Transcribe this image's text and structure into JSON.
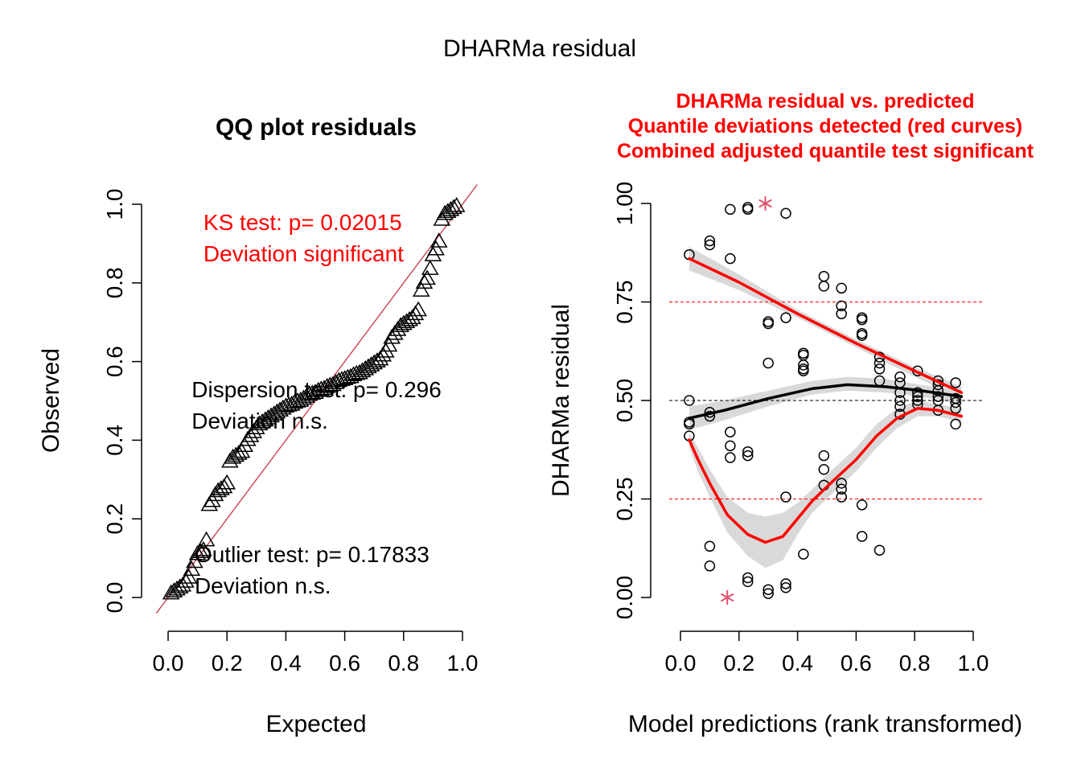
{
  "figure": {
    "title": "DHARMa residual"
  },
  "colors": {
    "black": "#000000",
    "red": "#ff0000",
    "qqline": "#c8505a",
    "band": "#d9d9d9",
    "outlier": "#df536b",
    "refline": "#ff0000"
  },
  "chart_data": [
    {
      "type": "scatter",
      "title": "QQ plot residuals",
      "xlabel": "Expected",
      "ylabel": "Observed",
      "xlim": [
        0,
        1
      ],
      "ylim": [
        0,
        1
      ],
      "x_ticks": [
        "0.0",
        "0.2",
        "0.4",
        "0.6",
        "0.8",
        "1.0"
      ],
      "y_ticks": [
        "0.0",
        "0.2",
        "0.4",
        "0.6",
        "0.8",
        "1.0"
      ],
      "marker": "triangle",
      "identity_line": true,
      "annotations": [
        {
          "key": "ks",
          "lines": [
            "KS test: p= 0.02015",
            "Deviation  significant"
          ],
          "color": "red",
          "at": [
            0.12,
            0.955
          ]
        },
        {
          "key": "dispersion",
          "lines": [
            "Dispersion test: p= 0.296",
            "Deviation  n.s."
          ],
          "color": "black",
          "at": [
            0.08,
            0.53
          ]
        },
        {
          "key": "outlier",
          "lines": [
            "Outlier test: p= 0.17833",
            "Deviation  n.s."
          ],
          "color": "black",
          "at": [
            0.09,
            0.11
          ]
        }
      ],
      "points": [
        [
          0.01,
          0.01
        ],
        [
          0.02,
          0.015
        ],
        [
          0.03,
          0.02
        ],
        [
          0.04,
          0.025
        ],
        [
          0.05,
          0.03
        ],
        [
          0.06,
          0.04
        ],
        [
          0.07,
          0.05
        ],
        [
          0.08,
          0.07
        ],
        [
          0.09,
          0.09
        ],
        [
          0.1,
          0.11
        ],
        [
          0.11,
          0.115
        ],
        [
          0.12,
          0.12
        ],
        [
          0.13,
          0.145
        ],
        [
          0.14,
          0.235
        ],
        [
          0.15,
          0.245
        ],
        [
          0.16,
          0.26
        ],
        [
          0.17,
          0.27
        ],
        [
          0.18,
          0.275
        ],
        [
          0.19,
          0.28
        ],
        [
          0.2,
          0.29
        ],
        [
          0.21,
          0.345
        ],
        [
          0.22,
          0.355
        ],
        [
          0.23,
          0.36
        ],
        [
          0.24,
          0.365
        ],
        [
          0.25,
          0.37
        ],
        [
          0.26,
          0.385
        ],
        [
          0.27,
          0.4
        ],
        [
          0.28,
          0.41
        ],
        [
          0.29,
          0.42
        ],
        [
          0.3,
          0.43
        ],
        [
          0.31,
          0.44
        ],
        [
          0.32,
          0.445
        ],
        [
          0.33,
          0.45
        ],
        [
          0.34,
          0.455
        ],
        [
          0.35,
          0.46
        ],
        [
          0.36,
          0.465
        ],
        [
          0.37,
          0.47
        ],
        [
          0.38,
          0.475
        ],
        [
          0.39,
          0.48
        ],
        [
          0.4,
          0.485
        ],
        [
          0.41,
          0.488
        ],
        [
          0.42,
          0.49
        ],
        [
          0.43,
          0.495
        ],
        [
          0.44,
          0.498
        ],
        [
          0.45,
          0.5
        ],
        [
          0.46,
          0.505
        ],
        [
          0.47,
          0.51
        ],
        [
          0.48,
          0.515
        ],
        [
          0.49,
          0.518
        ],
        [
          0.5,
          0.52
        ],
        [
          0.51,
          0.525
        ],
        [
          0.52,
          0.528
        ],
        [
          0.53,
          0.53
        ],
        [
          0.54,
          0.535
        ],
        [
          0.55,
          0.538
        ],
        [
          0.56,
          0.54
        ],
        [
          0.57,
          0.545
        ],
        [
          0.58,
          0.55
        ],
        [
          0.59,
          0.553
        ],
        [
          0.6,
          0.555
        ],
        [
          0.61,
          0.558
        ],
        [
          0.62,
          0.56
        ],
        [
          0.63,
          0.565
        ],
        [
          0.64,
          0.568
        ],
        [
          0.65,
          0.57
        ],
        [
          0.66,
          0.575
        ],
        [
          0.67,
          0.58
        ],
        [
          0.68,
          0.585
        ],
        [
          0.69,
          0.59
        ],
        [
          0.7,
          0.595
        ],
        [
          0.71,
          0.6
        ],
        [
          0.72,
          0.605
        ],
        [
          0.73,
          0.615
        ],
        [
          0.74,
          0.625
        ],
        [
          0.75,
          0.64
        ],
        [
          0.76,
          0.66
        ],
        [
          0.77,
          0.67
        ],
        [
          0.78,
          0.68
        ],
        [
          0.79,
          0.69
        ],
        [
          0.8,
          0.695
        ],
        [
          0.81,
          0.7
        ],
        [
          0.82,
          0.705
        ],
        [
          0.83,
          0.71
        ],
        [
          0.84,
          0.72
        ],
        [
          0.85,
          0.73
        ],
        [
          0.86,
          0.78
        ],
        [
          0.87,
          0.8
        ],
        [
          0.88,
          0.81
        ],
        [
          0.89,
          0.835
        ],
        [
          0.9,
          0.87
        ],
        [
          0.91,
          0.885
        ],
        [
          0.92,
          0.905
        ],
        [
          0.93,
          0.96
        ],
        [
          0.94,
          0.975
        ],
        [
          0.95,
          0.98
        ],
        [
          0.96,
          0.985
        ],
        [
          0.97,
          0.99
        ],
        [
          0.98,
          0.995
        ]
      ]
    },
    {
      "type": "scatter",
      "title_lines": [
        "DHARMa residual vs. predicted",
        "Quantile deviations detected (red curves)",
        "Combined adjusted quantile test significant"
      ],
      "xlabel": "Model predictions (rank transformed)",
      "ylabel": "DHARMa residual",
      "xlim": [
        0,
        1
      ],
      "ylim": [
        0,
        1
      ],
      "x_ticks": [
        "0.0",
        "0.2",
        "0.4",
        "0.6",
        "0.8",
        "1.0"
      ],
      "y_ticks": [
        "0.00",
        "0.25",
        "0.50",
        "0.75",
        "1.00"
      ],
      "marker": "circle",
      "reference_lines": [
        0.25,
        0.5,
        0.75
      ],
      "points": [
        [
          0.03,
          0.87
        ],
        [
          0.03,
          0.5
        ],
        [
          0.03,
          0.445
        ],
        [
          0.03,
          0.44
        ],
        [
          0.03,
          0.41
        ],
        [
          0.1,
          0.905
        ],
        [
          0.1,
          0.895
        ],
        [
          0.1,
          0.47
        ],
        [
          0.1,
          0.46
        ],
        [
          0.1,
          0.13
        ],
        [
          0.1,
          0.08
        ],
        [
          0.17,
          0.985
        ],
        [
          0.17,
          0.86
        ],
        [
          0.17,
          0.42
        ],
        [
          0.17,
          0.385
        ],
        [
          0.17,
          0.355
        ],
        [
          0.23,
          0.99
        ],
        [
          0.23,
          0.985
        ],
        [
          0.23,
          0.37
        ],
        [
          0.23,
          0.36
        ],
        [
          0.23,
          0.05
        ],
        [
          0.23,
          0.04
        ],
        [
          0.3,
          0.7
        ],
        [
          0.3,
          0.695
        ],
        [
          0.3,
          0.595
        ],
        [
          0.3,
          0.02
        ],
        [
          0.3,
          0.01
        ],
        [
          0.36,
          0.975
        ],
        [
          0.36,
          0.71
        ],
        [
          0.36,
          0.255
        ],
        [
          0.36,
          0.035
        ],
        [
          0.36,
          0.025
        ],
        [
          0.42,
          0.62
        ],
        [
          0.42,
          0.615
        ],
        [
          0.42,
          0.59
        ],
        [
          0.42,
          0.58
        ],
        [
          0.42,
          0.575
        ],
        [
          0.42,
          0.11
        ],
        [
          0.49,
          0.815
        ],
        [
          0.49,
          0.79
        ],
        [
          0.49,
          0.36
        ],
        [
          0.49,
          0.325
        ],
        [
          0.49,
          0.285
        ],
        [
          0.55,
          0.785
        ],
        [
          0.55,
          0.74
        ],
        [
          0.55,
          0.72
        ],
        [
          0.55,
          0.29
        ],
        [
          0.55,
          0.275
        ],
        [
          0.55,
          0.255
        ],
        [
          0.62,
          0.71
        ],
        [
          0.62,
          0.705
        ],
        [
          0.62,
          0.67
        ],
        [
          0.62,
          0.665
        ],
        [
          0.62,
          0.235
        ],
        [
          0.62,
          0.155
        ],
        [
          0.68,
          0.61
        ],
        [
          0.68,
          0.595
        ],
        [
          0.68,
          0.58
        ],
        [
          0.68,
          0.55
        ],
        [
          0.68,
          0.12
        ],
        [
          0.75,
          0.56
        ],
        [
          0.75,
          0.545
        ],
        [
          0.75,
          0.52
        ],
        [
          0.75,
          0.5
        ],
        [
          0.75,
          0.485
        ],
        [
          0.75,
          0.465
        ],
        [
          0.81,
          0.575
        ],
        [
          0.81,
          0.52
        ],
        [
          0.81,
          0.51
        ],
        [
          0.81,
          0.5
        ],
        [
          0.81,
          0.49
        ],
        [
          0.88,
          0.55
        ],
        [
          0.88,
          0.54
        ],
        [
          0.88,
          0.525
        ],
        [
          0.88,
          0.51
        ],
        [
          0.88,
          0.5
        ],
        [
          0.88,
          0.475
        ],
        [
          0.94,
          0.545
        ],
        [
          0.94,
          0.505
        ],
        [
          0.94,
          0.495
        ],
        [
          0.94,
          0.48
        ],
        [
          0.94,
          0.44
        ]
      ],
      "outliers": [
        [
          0.29,
          1.0
        ],
        [
          0.16,
          0.0
        ]
      ],
      "quantile_curves": [
        {
          "quantile": 0.75,
          "color": "red",
          "x": [
            0.03,
            0.2,
            0.4,
            0.6,
            0.8,
            0.96
          ],
          "y": [
            0.86,
            0.8,
            0.72,
            0.645,
            0.575,
            0.52
          ],
          "band_upper": [
            0.89,
            0.82,
            0.73,
            0.655,
            0.585,
            0.535
          ],
          "band_lower": [
            0.83,
            0.78,
            0.71,
            0.635,
            0.56,
            0.505
          ]
        },
        {
          "quantile": 0.5,
          "color": "black",
          "x": [
            0.03,
            0.15,
            0.3,
            0.45,
            0.57,
            0.7,
            0.82,
            0.96
          ],
          "y": [
            0.455,
            0.475,
            0.505,
            0.53,
            0.54,
            0.535,
            0.525,
            0.51
          ],
          "band_upper": [
            0.485,
            0.5,
            0.525,
            0.55,
            0.56,
            0.555,
            0.54,
            0.525
          ],
          "band_lower": [
            0.425,
            0.45,
            0.485,
            0.515,
            0.525,
            0.52,
            0.51,
            0.49
          ]
        },
        {
          "quantile": 0.25,
          "color": "red",
          "x": [
            0.03,
            0.06,
            0.1,
            0.16,
            0.23,
            0.29,
            0.35,
            0.4,
            0.45,
            0.52,
            0.6,
            0.67,
            0.74,
            0.81,
            0.88,
            0.96
          ],
          "y": [
            0.4,
            0.35,
            0.29,
            0.21,
            0.16,
            0.14,
            0.155,
            0.2,
            0.245,
            0.295,
            0.35,
            0.41,
            0.455,
            0.48,
            0.475,
            0.46
          ],
          "band_upper": [
            0.42,
            0.38,
            0.325,
            0.255,
            0.215,
            0.205,
            0.215,
            0.24,
            0.275,
            0.325,
            0.38,
            0.44,
            0.48,
            0.5,
            0.49,
            0.48
          ],
          "band_lower": [
            0.38,
            0.32,
            0.255,
            0.165,
            0.105,
            0.075,
            0.095,
            0.16,
            0.215,
            0.265,
            0.32,
            0.38,
            0.43,
            0.46,
            0.46,
            0.445
          ]
        }
      ]
    }
  ]
}
